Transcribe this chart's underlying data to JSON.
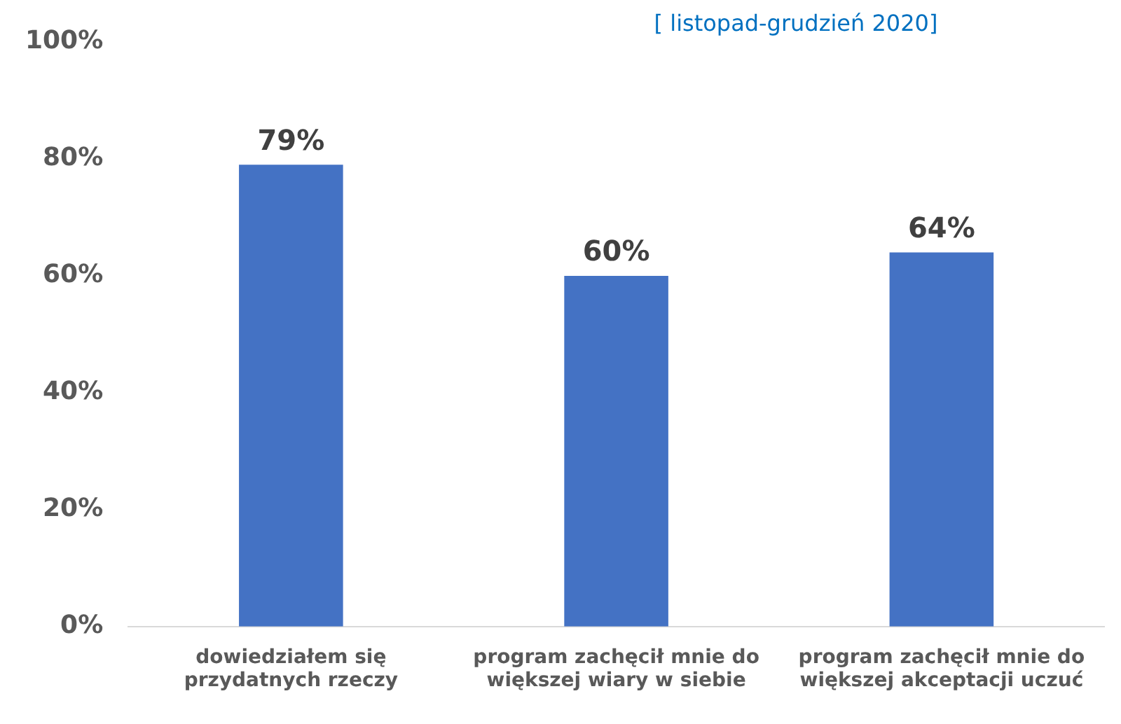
{
  "chart_data": {
    "type": "bar",
    "subtitle": "[ listopad-grudzień 2020]",
    "categories": [
      "dowiedziałem się przydatnych rzeczy",
      "program zachęcił mnie do większej wiary w siebie",
      "program zachęcił mnie do większej akceptacji uczuć"
    ],
    "values": [
      79,
      60,
      64
    ],
    "color": "#4472c4",
    "value_labels": [
      "79%",
      "60%",
      "64%"
    ],
    "ylim": [
      0,
      100
    ],
    "yticks": [
      {
        "value": 0,
        "label": "0%"
      },
      {
        "value": 20,
        "label": "20%"
      },
      {
        "value": 40,
        "label": "40%"
      },
      {
        "value": 60,
        "label": "60%"
      },
      {
        "value": 80,
        "label": "80%"
      },
      {
        "value": 100,
        "label": "100%"
      }
    ],
    "grid": false,
    "legend": false
  }
}
